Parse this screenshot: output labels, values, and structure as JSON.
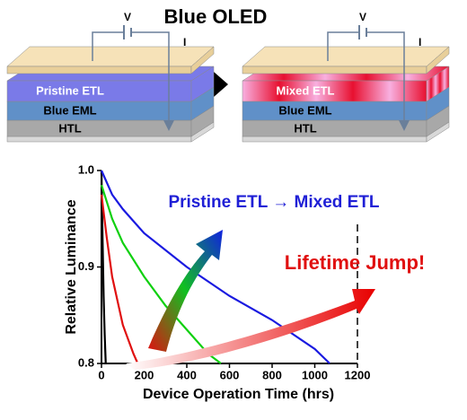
{
  "diagram": {
    "title": "Blue OLED",
    "left_stack": {
      "layers": [
        "Pristine ETL",
        "Blue EML",
        "HTL"
      ],
      "voltage": "V",
      "current": "I"
    },
    "right_stack": {
      "layers": [
        "Mixed ETL",
        "Blue EML",
        "HTL"
      ],
      "voltage": "V",
      "current": "I"
    }
  },
  "chart_data": {
    "type": "line",
    "x_label": "Device Operation Time (hrs)",
    "y_label": "Relative Luminance",
    "annotations": [
      {
        "text": "Pristine ETL → Mixed ETL",
        "color": "#1f1fd6"
      },
      {
        "text": "Lifetime Jump!",
        "color": "#e01010"
      }
    ],
    "xlim": [
      0,
      1200
    ],
    "xticks": [
      0,
      200,
      400,
      600,
      800,
      1000,
      1200
    ],
    "ylim": [
      0.8,
      1
    ],
    "yticks": [
      0.8,
      0.9,
      {
        "value": 1,
        "label": "1.0"
      }
    ],
    "series": [
      {
        "color": "#000000",
        "x": [
          0,
          5,
          10,
          15,
          20
        ],
        "values": [
          1.0,
          0.93,
          0.87,
          0.83,
          0.8
        ]
      },
      {
        "color": "#e01010",
        "x": [
          0,
          25,
          50,
          100,
          150,
          170
        ],
        "values": [
          0.975,
          0.93,
          0.89,
          0.84,
          0.81,
          0.8
        ]
      },
      {
        "color": "#10d010",
        "x": [
          0,
          50,
          100,
          200,
          300,
          400,
          500,
          560
        ],
        "values": [
          0.985,
          0.95,
          0.925,
          0.89,
          0.86,
          0.835,
          0.81,
          0.8
        ]
      },
      {
        "color": "#1a1ae0",
        "x": [
          0,
          50,
          100,
          200,
          400,
          600,
          800,
          1000,
          1070
        ],
        "values": [
          1.0,
          0.975,
          0.96,
          0.935,
          0.9,
          0.87,
          0.845,
          0.815,
          0.8
        ]
      }
    ]
  }
}
